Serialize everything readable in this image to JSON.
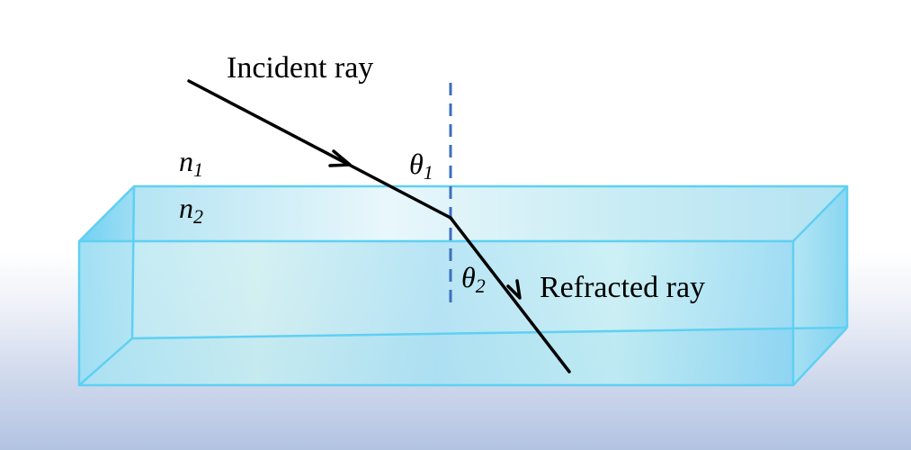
{
  "labels": {
    "incident_ray": "Incident ray",
    "refracted_ray": "Refracted ray",
    "n1": {
      "base": "n",
      "sub": "1"
    },
    "n2": {
      "base": "n",
      "sub": "2"
    },
    "theta1": {
      "base": "θ",
      "sub": "1"
    },
    "theta2": {
      "base": "θ",
      "sub": "2"
    }
  },
  "colors": {
    "prism_edge": "#5fd0f2",
    "prism_face_light": "#e6f7fb",
    "prism_face_mid": "#bfe7f4",
    "prism_side": "#6fcff2",
    "normal_line": "#3a6fbd",
    "ray": "#000000"
  }
}
